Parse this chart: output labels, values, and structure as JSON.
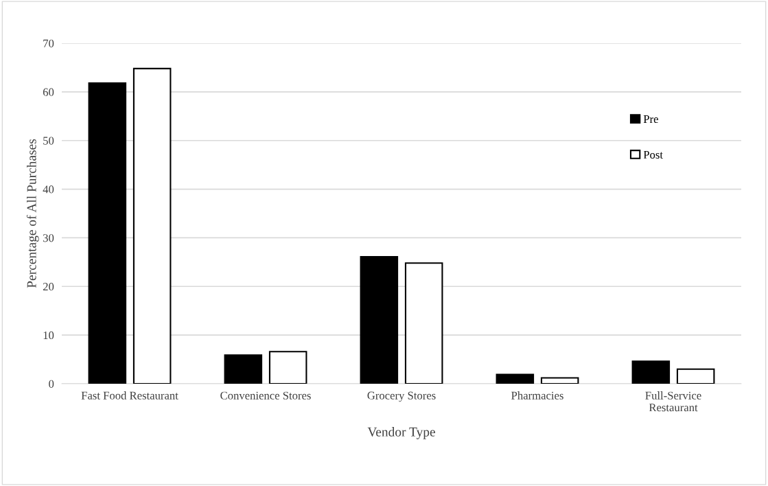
{
  "chart_data": {
    "type": "bar",
    "xlabel": "Vendor Type",
    "ylabel": "Percentage of All Purchases",
    "categories": [
      "Fast Food Restaurant",
      "Convenience Stores",
      "Grocery Stores",
      "Pharmacies",
      "Full-Service\nRestaurant"
    ],
    "series": [
      {
        "name": "Pre",
        "color": "#000000",
        "values": [
          61.8,
          5.9,
          26.1,
          1.9,
          4.6
        ]
      },
      {
        "name": "Post",
        "color": "#ffffff",
        "values": [
          64.8,
          6.6,
          24.8,
          1.2,
          3.0
        ]
      }
    ],
    "ylim": [
      0,
      70
    ],
    "yticks": [
      0,
      10,
      20,
      30,
      40,
      50,
      60,
      70
    ],
    "grid": "y",
    "legend": "top right"
  }
}
